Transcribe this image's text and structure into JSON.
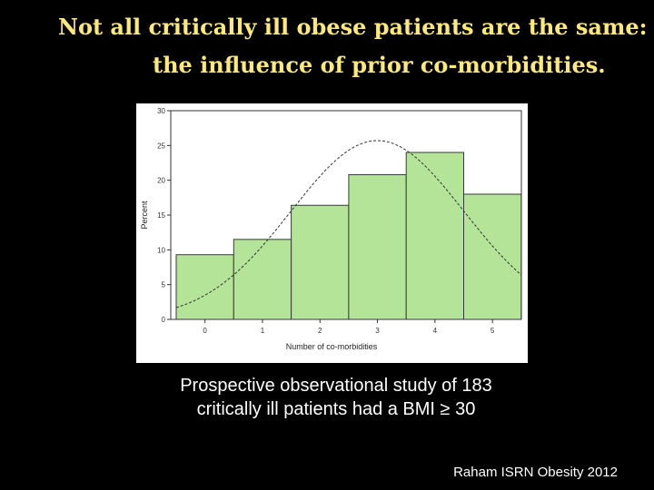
{
  "slide": {
    "title_line1": "Not all critically ill obese patients are the same:",
    "title_line2": "the influence of prior co-morbidities.",
    "caption_line1": "Prospective observational study of 183",
    "caption_line2": "critically ill patients had a BMI ≥ 30",
    "citation": "Raham ISRN Obesity 2012"
  },
  "chart_data": {
    "type": "bar",
    "title": "",
    "xlabel": "Number of co-morbidities",
    "ylabel": "Percent",
    "categories": [
      "0",
      "1",
      "2",
      "3",
      "4",
      "5"
    ],
    "values": [
      9.3,
      11.5,
      16.4,
      20.8,
      24.0,
      18.0
    ],
    "ylim": [
      0,
      30
    ],
    "yticks": [
      "0",
      "5",
      "10",
      "15",
      "20",
      "25",
      "30"
    ],
    "normal_curve": {
      "mean": 3.0,
      "sd": 1.5,
      "peak_percent": 25.7,
      "style": "dashed"
    },
    "colors": {
      "bar_fill": "#b3e497",
      "bar_stroke": "#3a3a3a",
      "curve": "#333333"
    }
  }
}
